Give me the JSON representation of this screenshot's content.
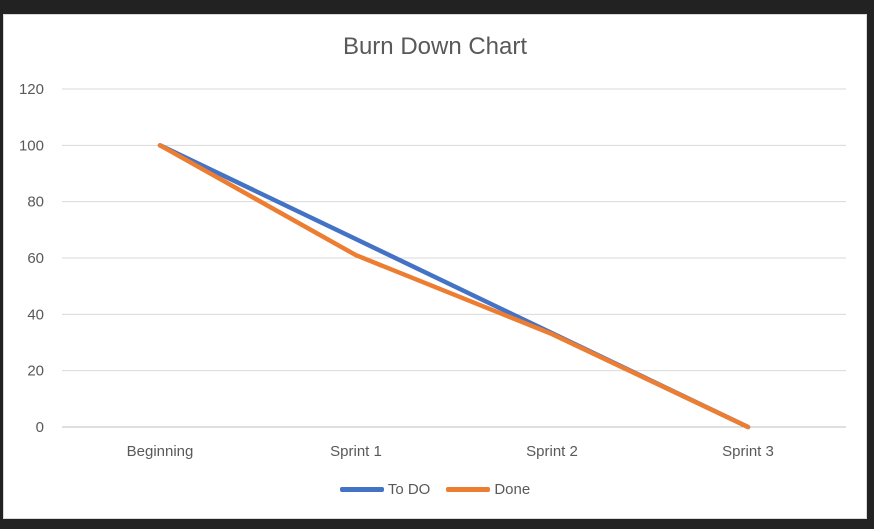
{
  "chart_data": {
    "type": "line",
    "title": "Burn Down Chart",
    "xlabel": "",
    "ylabel": "",
    "categories": [
      "Beginning",
      "Sprint 1",
      "Sprint 2",
      "Sprint 3"
    ],
    "ylim": [
      0,
      120
    ],
    "yticks": [
      0,
      20,
      40,
      60,
      80,
      100,
      120
    ],
    "grid": true,
    "legend_position": "bottom",
    "series": [
      {
        "name": "To DO",
        "color": "#4472C4",
        "values": [
          100,
          66.7,
          33.3,
          0
        ]
      },
      {
        "name": "Done",
        "color": "#ED7D31",
        "values": [
          100,
          61,
          33,
          0
        ]
      }
    ]
  }
}
